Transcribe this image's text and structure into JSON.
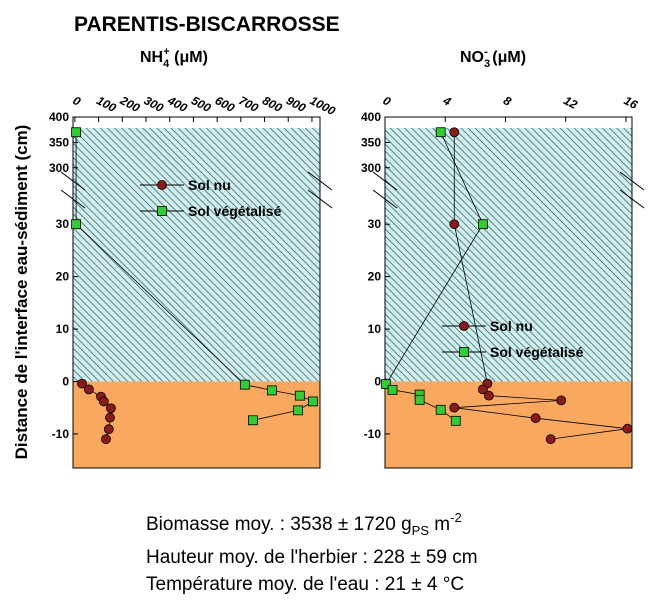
{
  "chart_data": [
    {
      "type": "scatter-line",
      "title": "PARENTIS-BISCARROSSE",
      "xlabel": {
        "base": "NH",
        "sub": "4",
        "sup": "+",
        "unit": " (μM)"
      },
      "ylabel": "Distance de l'interface eau-sédiment (cm)",
      "xlim": [
        -8,
        1034
      ],
      "xticks": [
        0,
        100,
        200,
        300,
        400,
        500,
        600,
        700,
        800,
        900,
        1000
      ],
      "ylim": [
        -16.5,
        400
      ],
      "y_break": [
        35,
        270
      ],
      "yticks": [
        -10,
        0,
        10,
        20,
        30,
        300,
        350,
        400
      ],
      "legend": "upper center",
      "series": [
        {
          "name": "Sol nu",
          "color": "#8b1a1a",
          "marker": "circle",
          "x": [
            30,
            59,
            110,
            122,
            152,
            148,
            143,
            131
          ],
          "y": [
            -0.4,
            -1.5,
            -2.9,
            -3.8,
            -5.1,
            -6.9,
            -9.1,
            -11
          ]
        },
        {
          "name": "Sol végétalisé",
          "color": "#33cc33",
          "marker": "square",
          "x": [
            5,
            5,
            717,
            831,
            949,
            1004,
            941,
            751
          ],
          "y": [
            370,
            30,
            -0.6,
            -1.7,
            -2.7,
            -3.8,
            -5.5,
            -7.4
          ]
        }
      ]
    },
    {
      "type": "scatter-line",
      "xlabel": {
        "base": "NO",
        "sub": "3",
        "sup": "-",
        "unit": " (μM)"
      },
      "xlim": [
        0,
        16.4
      ],
      "xticks": [
        0,
        4,
        8,
        12,
        16
      ],
      "ylim": [
        -16.5,
        400
      ],
      "y_break": [
        35,
        270
      ],
      "yticks": [
        -10,
        0,
        10,
        20,
        30,
        300,
        350,
        400
      ],
      "legend": "lower center",
      "series": [
        {
          "name": "Sol nu",
          "color": "#8b1a1a",
          "marker": "circle",
          "x": [
            4.6,
            4.6,
            6.8,
            6.5,
            6.9,
            11.7,
            4.6,
            10,
            16.1,
            11
          ],
          "y": [
            370,
            30,
            -0.4,
            -1.5,
            -2.7,
            -3.6,
            -5,
            -7,
            -9,
            -11
          ]
        },
        {
          "name": "Sol végétalisé",
          "color": "#33cc33",
          "marker": "square",
          "x": [
            3.7,
            6.5,
            0.07,
            0.5,
            2.3,
            2.3,
            3.7,
            4.7
          ],
          "y": [
            370,
            30,
            -0.5,
            -1.6,
            -2.5,
            -3.5,
            -5.4,
            -7.5
          ]
        }
      ]
    }
  ],
  "notes": [
    {
      "text": "Biomasse moy. : 3538 ± 1720 g",
      "sub": "PS",
      "mid": " m",
      "sup": "-2"
    },
    "Hauteur moy. de l'herbier : 228 ± 59 cm",
    "Température moy. de l'eau : 21 ± 4 °C"
  ]
}
